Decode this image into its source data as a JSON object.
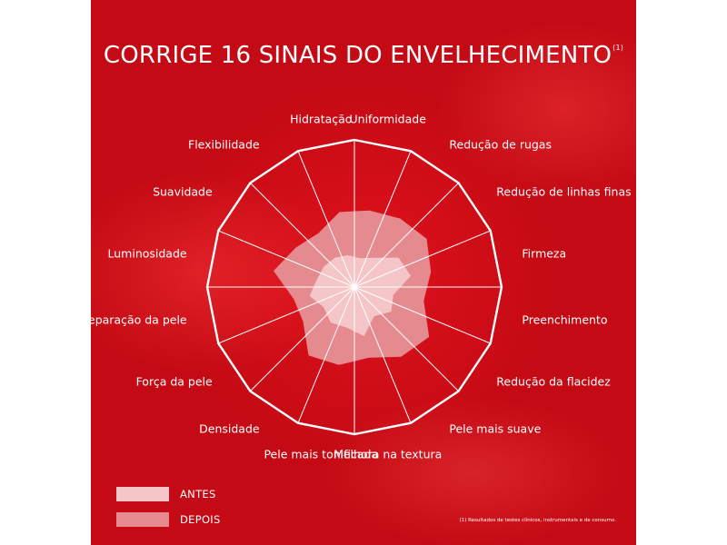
{
  "title": "CORRIGE 16 SINAIS DO ENVELHECIMENTO",
  "title_superscript": "(1)",
  "footnote": "(1) Resultados de testes clínicos, instrumentais e de consumo.",
  "colors": {
    "background": "#d00f18",
    "grid": "#ffffff",
    "antes": "#f5c6c8",
    "depois": "#e58a8f"
  },
  "legend": {
    "placement": "bottom-left",
    "items": [
      {
        "label": "ANTES",
        "color": "#f5c6c8"
      },
      {
        "label": "DEPOIS",
        "color": "#e58a8f"
      }
    ]
  },
  "chart_data": {
    "type": "radar",
    "title": "CORRIGE 16 SINAIS DO ENVELHECIMENTO",
    "categories": [
      "Uniformidade",
      "Redução de rugas",
      "Redução de linhas finas",
      "Firmeza",
      "Preenchimento",
      "Redução da flacidez",
      "Pele mais suave",
      "Melhora na textura",
      "Pele mais tonificada",
      "Densidade",
      "Força da pele",
      "Reparação da pele",
      "Luminosidade",
      "Suavidade",
      "Flexibilidade",
      "Hidratação"
    ],
    "series": [
      {
        "name": "ANTES",
        "values": [
          0.2,
          0.24,
          0.36,
          0.39,
          0.27,
          0.3,
          0.24,
          0.34,
          0.28,
          0.29,
          0.25,
          0.31,
          0.26,
          0.25,
          0.24,
          0.22
        ]
      },
      {
        "name": "DEPOIS",
        "values": [
          0.53,
          0.56,
          0.59,
          0.53,
          0.48,
          0.61,
          0.57,
          0.49,
          0.54,
          0.56,
          0.42,
          0.42,
          0.56,
          0.48,
          0.44,
          0.52
        ]
      }
    ],
    "rlim": [
      0,
      1
    ],
    "grid": true
  }
}
